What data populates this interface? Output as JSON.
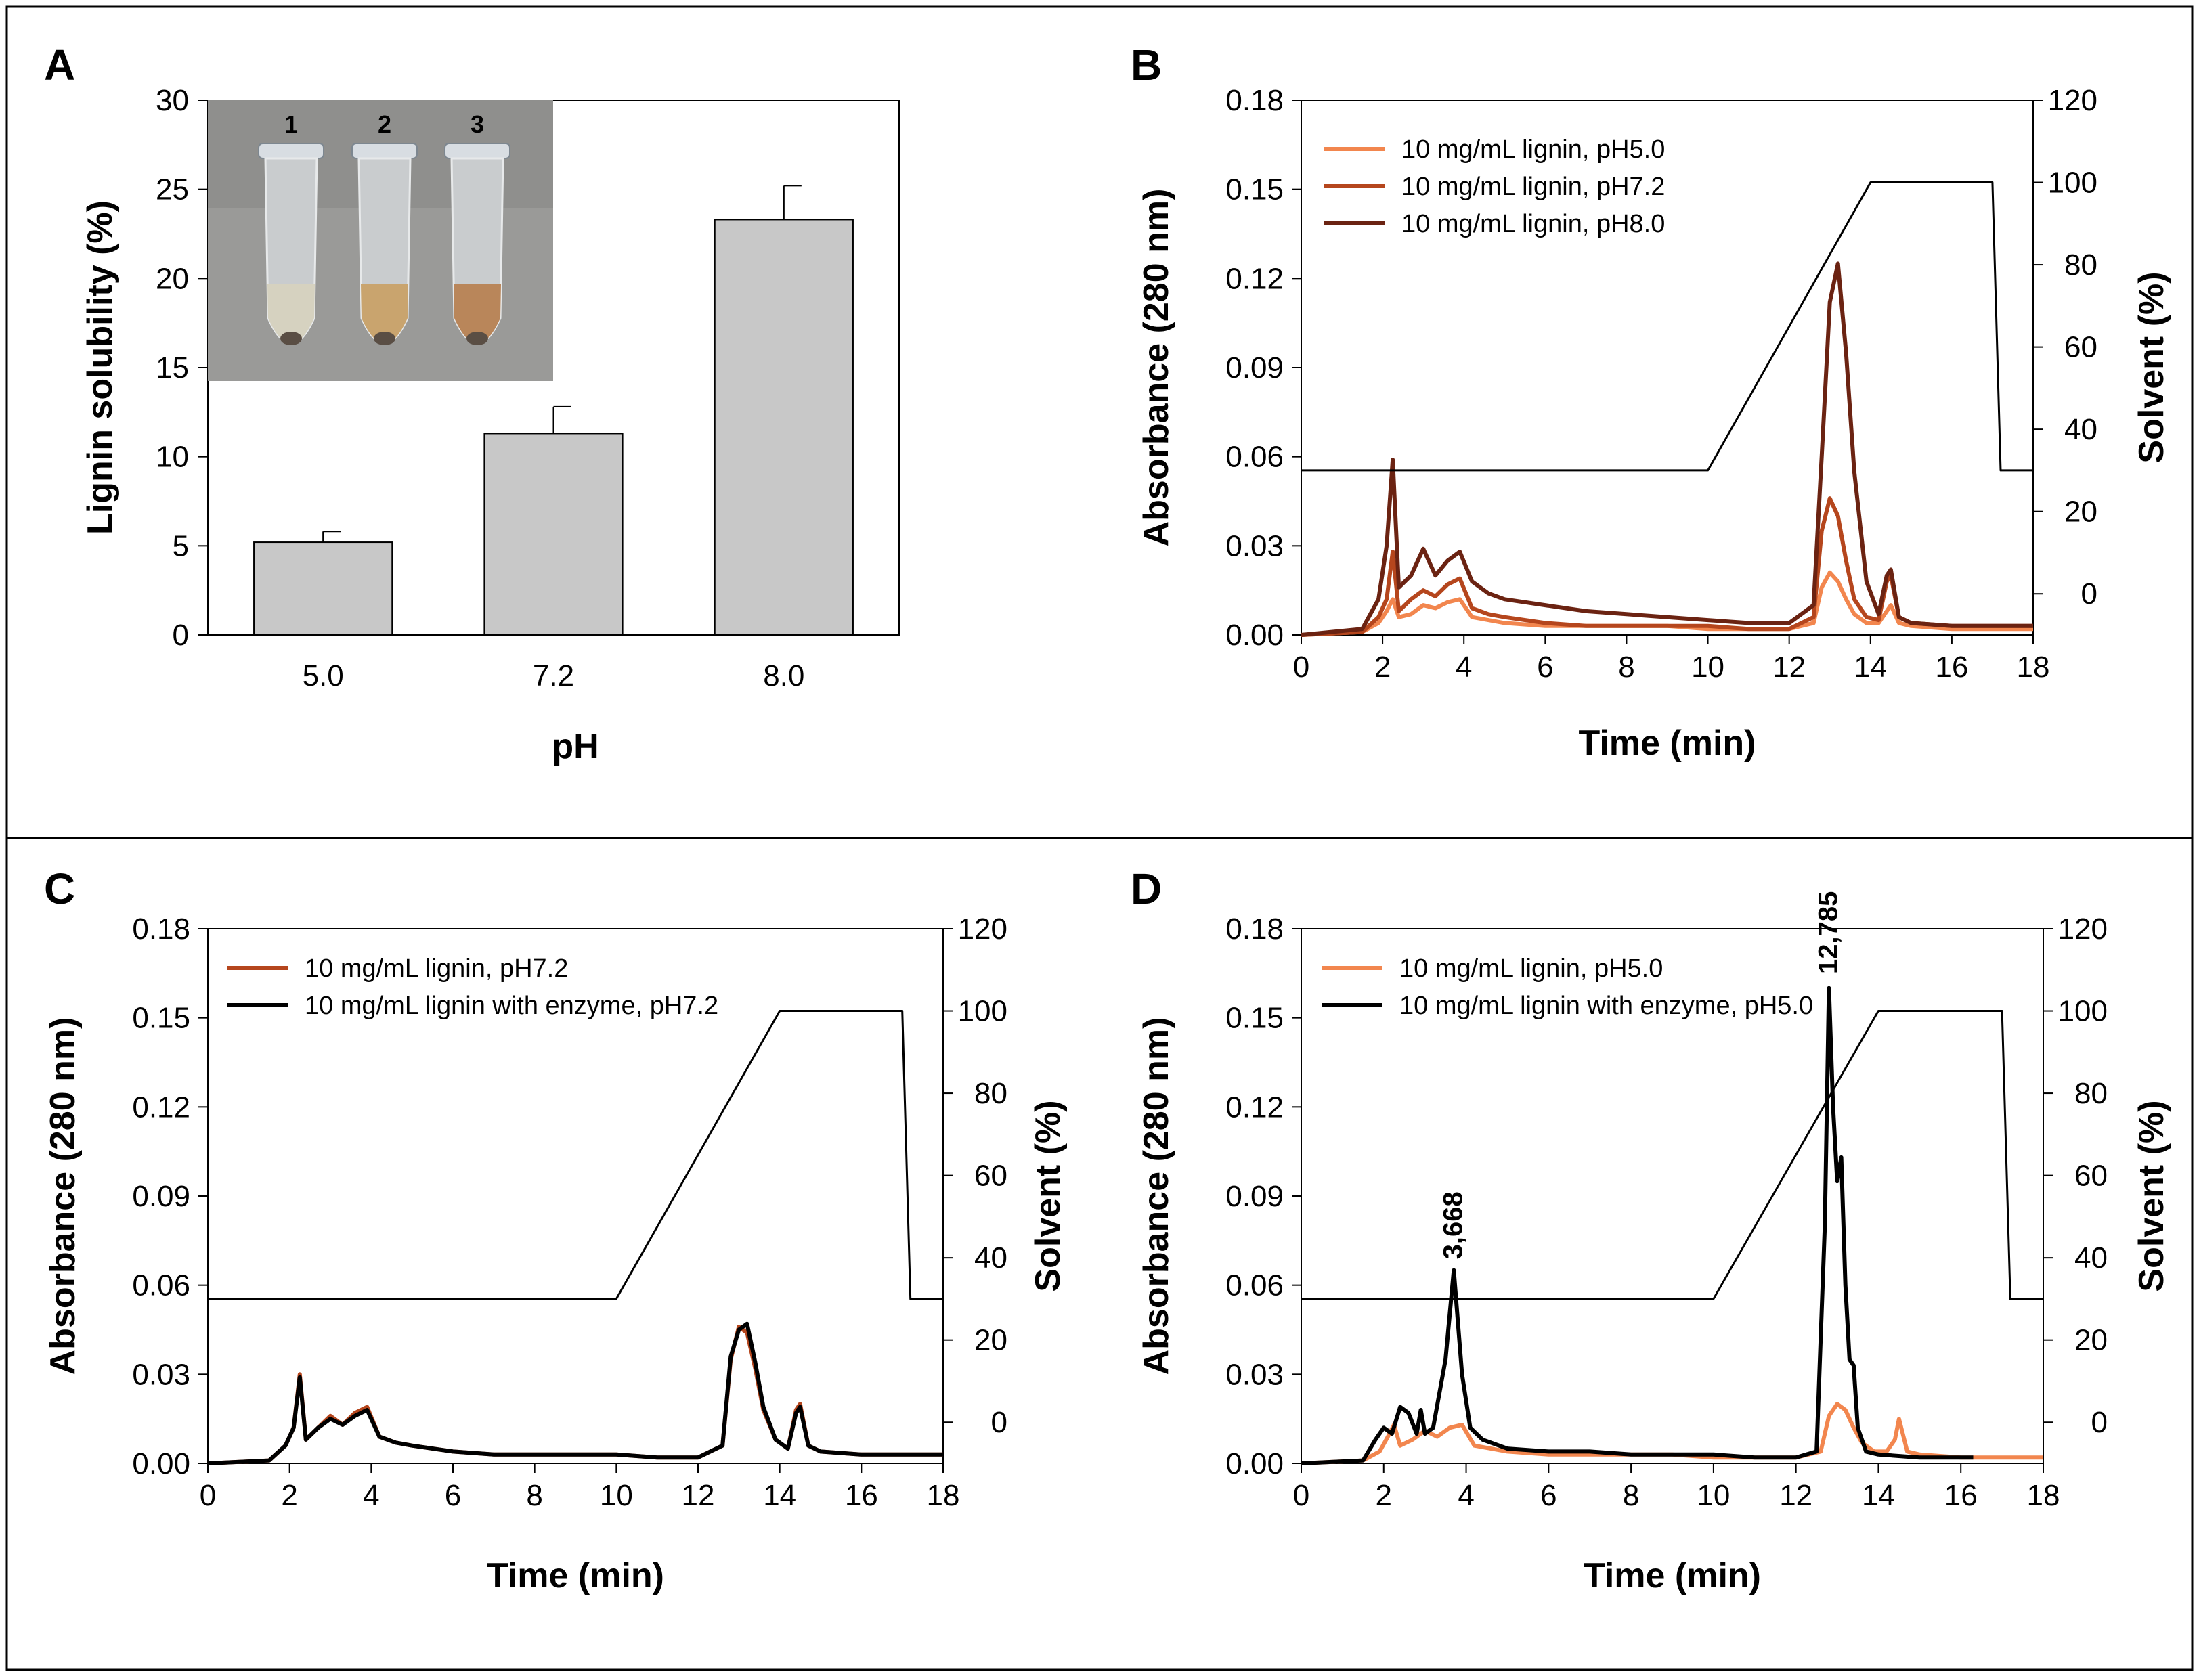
{
  "chart_data": [
    {
      "panel": "A",
      "type": "bar",
      "xlabel": "pH",
      "ylabel": "Lignin solubility (%)",
      "categories": [
        "5.0",
        "7.2",
        "8.0"
      ],
      "values": [
        5.2,
        11.3,
        23.3
      ],
      "errors": [
        0.6,
        1.5,
        1.9
      ],
      "ylim": [
        0,
        30
      ],
      "yticks": [
        "0",
        "5",
        "10",
        "15",
        "20",
        "25",
        "30"
      ],
      "bar_color": "#c8c8c8",
      "inset": {
        "type": "photo",
        "tube_labels": [
          "1",
          "2",
          "3"
        ],
        "liquid_colors": [
          "#d6d2c0",
          "#c9a46e",
          "#b9865a"
        ]
      }
    },
    {
      "panel": "B",
      "type": "line",
      "xlabel": "Time (min)",
      "ylabel": "Absorbance (280 nm)",
      "y2label": "Solvent (%)",
      "xlim": [
        0,
        18
      ],
      "ylim": [
        0,
        0.18
      ],
      "y2lim": [
        -10,
        120
      ],
      "xticks": [
        "0",
        "2",
        "4",
        "6",
        "8",
        "10",
        "12",
        "14",
        "16",
        "18"
      ],
      "yticks": [
        "0.00",
        "0.03",
        "0.06",
        "0.09",
        "0.12",
        "0.15",
        "0.18"
      ],
      "y2ticks": [
        "0",
        "20",
        "40",
        "60",
        "80",
        "100",
        "120"
      ],
      "legend_position": "top-left",
      "series": [
        {
          "name": "10 mg/mL lignin, pH5.0",
          "color": "#f2864e",
          "axis": "left",
          "x": [
            0,
            1.5,
            1.9,
            2.1,
            2.25,
            2.4,
            2.7,
            3.0,
            3.3,
            3.6,
            3.9,
            4.2,
            4.6,
            5,
            6,
            7,
            8,
            9,
            10,
            11,
            12,
            12.6,
            12.8,
            13.0,
            13.2,
            13.4,
            13.6,
            13.9,
            14.2,
            14.4,
            14.5,
            14.7,
            15,
            16,
            17,
            18
          ],
          "y": [
            0,
            0.001,
            0.004,
            0.008,
            0.012,
            0.006,
            0.007,
            0.01,
            0.009,
            0.011,
            0.012,
            0.006,
            0.005,
            0.004,
            0.003,
            0.003,
            0.003,
            0.003,
            0.002,
            0.002,
            0.002,
            0.004,
            0.016,
            0.021,
            0.018,
            0.012,
            0.007,
            0.004,
            0.004,
            0.008,
            0.01,
            0.004,
            0.003,
            0.002,
            0.002,
            0.002
          ]
        },
        {
          "name": "10 mg/mL lignin, pH7.2",
          "color": "#b5461d",
          "axis": "left",
          "x": [
            0,
            1.5,
            1.9,
            2.1,
            2.25,
            2.4,
            2.7,
            3.0,
            3.3,
            3.6,
            3.9,
            4.2,
            4.6,
            5,
            6,
            7,
            8,
            9,
            10,
            11,
            12,
            12.6,
            12.8,
            13.0,
            13.2,
            13.4,
            13.6,
            13.9,
            14.2,
            14.4,
            14.5,
            14.7,
            15,
            16,
            17,
            18
          ],
          "y": [
            0,
            0.001,
            0.006,
            0.012,
            0.028,
            0.008,
            0.012,
            0.015,
            0.013,
            0.017,
            0.019,
            0.009,
            0.007,
            0.006,
            0.004,
            0.003,
            0.003,
            0.003,
            0.003,
            0.002,
            0.002,
            0.006,
            0.035,
            0.046,
            0.04,
            0.025,
            0.012,
            0.006,
            0.005,
            0.018,
            0.02,
            0.006,
            0.004,
            0.003,
            0.003,
            0.003
          ]
        },
        {
          "name": "10 mg/mL lignin, pH8.0",
          "color": "#6b2312",
          "axis": "left",
          "x": [
            0,
            1.5,
            1.9,
            2.1,
            2.25,
            2.4,
            2.7,
            3.0,
            3.3,
            3.6,
            3.9,
            4.2,
            4.6,
            5,
            6,
            7,
            8,
            9,
            10,
            11,
            12,
            12.6,
            12.8,
            13.0,
            13.2,
            13.4,
            13.6,
            13.9,
            14.2,
            14.4,
            14.5,
            14.7,
            15,
            16,
            17,
            18
          ],
          "y": [
            0,
            0.002,
            0.012,
            0.03,
            0.059,
            0.016,
            0.02,
            0.029,
            0.02,
            0.025,
            0.028,
            0.018,
            0.014,
            0.012,
            0.01,
            0.008,
            0.007,
            0.006,
            0.005,
            0.004,
            0.004,
            0.01,
            0.06,
            0.112,
            0.125,
            0.095,
            0.055,
            0.018,
            0.007,
            0.02,
            0.022,
            0.006,
            0.004,
            0.003,
            0.003,
            0.003
          ]
        },
        {
          "name": "",
          "color": "#000000",
          "axis": "right",
          "x": [
            0,
            10,
            14,
            17,
            17.2,
            18
          ],
          "y": [
            30,
            30,
            100,
            100,
            30,
            30
          ]
        }
      ]
    },
    {
      "panel": "C",
      "type": "line",
      "xlabel": "Time (min)",
      "ylabel": "Absorbance (280 nm)",
      "y2label": "Solvent (%)",
      "xlim": [
        0,
        18
      ],
      "ylim": [
        0,
        0.18
      ],
      "y2lim": [
        -10,
        120
      ],
      "xticks": [
        "0",
        "2",
        "4",
        "6",
        "8",
        "10",
        "12",
        "14",
        "16",
        "18"
      ],
      "yticks": [
        "0.00",
        "0.03",
        "0.06",
        "0.09",
        "0.12",
        "0.15",
        "0.18"
      ],
      "y2ticks": [
        "0",
        "20",
        "40",
        "60",
        "80",
        "100",
        "120"
      ],
      "legend_position": "top-left",
      "series": [
        {
          "name": "10 mg/mL lignin, pH7.2",
          "color": "#b5461d",
          "axis": "left",
          "x": [
            0,
            1.5,
            1.9,
            2.1,
            2.25,
            2.4,
            2.7,
            3.0,
            3.3,
            3.6,
            3.9,
            4.2,
            4.6,
            5,
            6,
            7,
            8,
            9,
            10,
            11,
            12,
            12.6,
            12.8,
            13.0,
            13.2,
            13.4,
            13.6,
            13.9,
            14.2,
            14.4,
            14.5,
            14.7,
            15,
            16,
            17,
            18
          ],
          "y": [
            0,
            0.001,
            0.006,
            0.012,
            0.03,
            0.008,
            0.012,
            0.016,
            0.013,
            0.017,
            0.019,
            0.009,
            0.007,
            0.006,
            0.004,
            0.003,
            0.003,
            0.003,
            0.003,
            0.002,
            0.002,
            0.006,
            0.035,
            0.046,
            0.044,
            0.032,
            0.018,
            0.008,
            0.005,
            0.018,
            0.02,
            0.006,
            0.004,
            0.003,
            0.003,
            0.003
          ]
        },
        {
          "name": "10 mg/mL lignin with enzyme, pH7.2",
          "color": "#000000",
          "axis": "left",
          "x": [
            0,
            1.5,
            1.9,
            2.1,
            2.25,
            2.4,
            2.7,
            3.0,
            3.3,
            3.6,
            3.9,
            4.2,
            4.6,
            5,
            6,
            7,
            8,
            9,
            10,
            11,
            12,
            12.6,
            12.8,
            13.0,
            13.2,
            13.4,
            13.6,
            13.9,
            14.2,
            14.4,
            14.5,
            14.7,
            15,
            16,
            17,
            18
          ],
          "y": [
            0,
            0.001,
            0.006,
            0.012,
            0.029,
            0.008,
            0.012,
            0.015,
            0.013,
            0.016,
            0.018,
            0.009,
            0.007,
            0.006,
            0.004,
            0.003,
            0.003,
            0.003,
            0.003,
            0.002,
            0.002,
            0.006,
            0.036,
            0.045,
            0.047,
            0.034,
            0.019,
            0.008,
            0.005,
            0.017,
            0.019,
            0.006,
            0.004,
            0.003,
            0.003,
            0.003
          ]
        },
        {
          "name": "",
          "color": "#000000",
          "axis": "right",
          "x": [
            0,
            10,
            14,
            17,
            17.2,
            18
          ],
          "y": [
            30,
            30,
            100,
            100,
            30,
            30
          ]
        }
      ]
    },
    {
      "panel": "D",
      "type": "line",
      "xlabel": "Time (min)",
      "ylabel": "Absorbance (280 nm)",
      "y2label": "Solvent (%)",
      "xlim": [
        0,
        18
      ],
      "ylim": [
        0,
        0.18
      ],
      "y2lim": [
        -10,
        120
      ],
      "xticks": [
        "0",
        "2",
        "4",
        "6",
        "8",
        "10",
        "12",
        "14",
        "16",
        "18"
      ],
      "yticks": [
        "0.00",
        "0.03",
        "0.06",
        "0.09",
        "0.12",
        "0.15",
        "0.18"
      ],
      "y2ticks": [
        "0",
        "20",
        "40",
        "60",
        "80",
        "100",
        "120"
      ],
      "legend_position": "top-left",
      "annotations": [
        {
          "text": "3,668",
          "x": 3.7,
          "y": 0.066
        },
        {
          "text": "12,785",
          "x": 12.8,
          "y": 0.162
        }
      ],
      "series": [
        {
          "name": "10 mg/mL lignin, pH5.0",
          "color": "#f2864e",
          "axis": "left",
          "x": [
            0,
            1.5,
            1.9,
            2.1,
            2.25,
            2.4,
            2.7,
            3.0,
            3.3,
            3.6,
            3.9,
            4.2,
            4.6,
            5,
            6,
            7,
            8,
            9,
            10,
            11,
            12,
            12.6,
            12.8,
            13.0,
            13.2,
            13.4,
            13.6,
            13.9,
            14.2,
            14.4,
            14.5,
            14.7,
            15,
            16,
            17,
            18
          ],
          "y": [
            0,
            0.001,
            0.004,
            0.009,
            0.013,
            0.006,
            0.008,
            0.011,
            0.009,
            0.012,
            0.013,
            0.006,
            0.005,
            0.004,
            0.003,
            0.003,
            0.003,
            0.003,
            0.002,
            0.002,
            0.002,
            0.004,
            0.016,
            0.02,
            0.018,
            0.012,
            0.007,
            0.004,
            0.004,
            0.008,
            0.015,
            0.004,
            0.003,
            0.002,
            0.002,
            0.002
          ]
        },
        {
          "name": "10 mg/mL lignin with enzyme, pH5.0",
          "color": "#000000",
          "axis": "left",
          "x": [
            0,
            1.5,
            1.8,
            2.0,
            2.2,
            2.4,
            2.6,
            2.8,
            2.9,
            3.0,
            3.2,
            3.5,
            3.7,
            3.9,
            4.1,
            4.4,
            5,
            6,
            7,
            8,
            9,
            10,
            11,
            12,
            12.5,
            12.7,
            12.8,
            12.9,
            13.0,
            13.1,
            13.2,
            13.3,
            13.4,
            13.5,
            13.7,
            14,
            15,
            16,
            16.3
          ],
          "y": [
            0,
            0.001,
            0.008,
            0.012,
            0.01,
            0.019,
            0.017,
            0.01,
            0.018,
            0.01,
            0.012,
            0.035,
            0.065,
            0.03,
            0.012,
            0.008,
            0.005,
            0.004,
            0.004,
            0.003,
            0.003,
            0.003,
            0.002,
            0.002,
            0.004,
            0.08,
            0.16,
            0.12,
            0.095,
            0.103,
            0.06,
            0.035,
            0.033,
            0.012,
            0.004,
            0.003,
            0.002,
            0.002,
            0.002
          ]
        },
        {
          "name": "",
          "color": "#000000",
          "axis": "right",
          "x": [
            0,
            10,
            14,
            17,
            17.2,
            18
          ],
          "y": [
            30,
            30,
            100,
            100,
            30,
            30
          ]
        }
      ]
    }
  ]
}
